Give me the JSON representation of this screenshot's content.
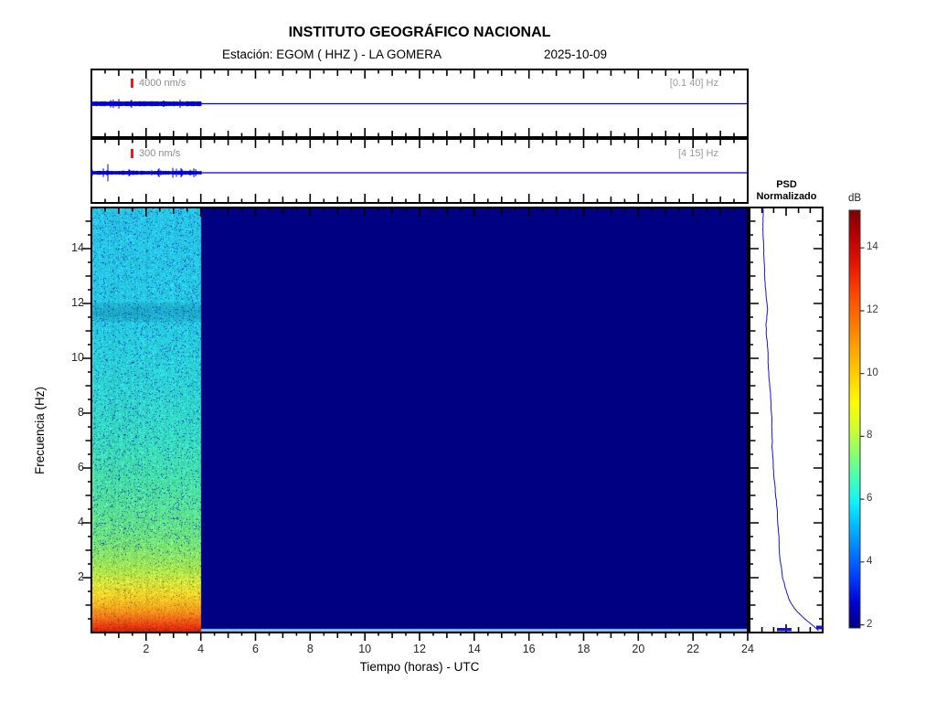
{
  "header": {
    "title": "INSTITUTO GEOGRÁFICO NACIONAL",
    "station": "Estación:  EGOM ( HHZ ) - LA GOMERA",
    "date": "2025-10-09"
  },
  "strips": [
    {
      "scale_label": "4000 nm/s",
      "band_label": "[0.1 40] Hz"
    },
    {
      "scale_label": "300 nm/s",
      "band_label": "[4 15] Hz"
    }
  ],
  "axes": {
    "x_label": "Tiempo (horas) - UTC",
    "y_label": "Frecuencia (Hz)"
  },
  "psd": {
    "title_line1": "PSD",
    "title_line2": "Normalizado"
  },
  "colorbar": {
    "label": "dB",
    "ticks": [
      14,
      12,
      10,
      8,
      6,
      4,
      2
    ],
    "value_range": [
      1.9,
      15.2
    ]
  },
  "chart_data": {
    "type": "heatmap",
    "title": "INSTITUTO GEOGRÁFICO NACIONAL",
    "subtitle": "Estación: EGOM ( HHZ ) - LA GOMERA  2025-10-09",
    "xlabel": "Tiempo (horas) - UTC",
    "ylabel": "Frecuencia (Hz)",
    "xlim": [
      0,
      24
    ],
    "ylim": [
      0,
      15.5
    ],
    "x_major_ticks": [
      2,
      4,
      6,
      8,
      10,
      12,
      14,
      16,
      18,
      20,
      22,
      24
    ],
    "y_major_ticks": [
      2,
      4,
      6,
      8,
      10,
      12,
      14
    ],
    "data_time_range_hours": [
      0,
      4
    ],
    "no_data_color": "#000082",
    "colormap": "jet",
    "colorbar_db_range": [
      2,
      15
    ],
    "waveforms": [
      {
        "scale_label": "4000 nm/s",
        "band_hz": [
          0.1,
          40
        ],
        "active_hours": [
          0,
          4
        ]
      },
      {
        "scale_label": "300 nm/s",
        "band_hz": [
          4,
          15
        ],
        "active_hours": [
          0,
          4
        ]
      }
    ],
    "freq_color_stops": [
      [
        15.5,
        40,
        198,
        232
      ],
      [
        12.1,
        38,
        202,
        228
      ],
      [
        11.7,
        30,
        182,
        216
      ],
      [
        11.3,
        38,
        203,
        226
      ],
      [
        9.0,
        46,
        212,
        212
      ],
      [
        7.0,
        56,
        220,
        192
      ],
      [
        5.5,
        72,
        224,
        166
      ],
      [
        4.5,
        88,
        226,
        150
      ],
      [
        3.5,
        108,
        226,
        126
      ],
      [
        2.8,
        138,
        228,
        100
      ],
      [
        2.2,
        178,
        230,
        76
      ],
      [
        1.8,
        216,
        226,
        58
      ],
      [
        1.4,
        242,
        212,
        44
      ],
      [
        1.1,
        248,
        186,
        34
      ],
      [
        0.8,
        248,
        150,
        28
      ],
      [
        0.55,
        243,
        112,
        24
      ],
      [
        0.35,
        236,
        76,
        20
      ],
      [
        0.18,
        226,
        48,
        14
      ],
      [
        0.0,
        206,
        28,
        10
      ]
    ],
    "psd_curve_points": [
      [
        15.5,
        0.185
      ],
      [
        15.0,
        0.19
      ],
      [
        14.5,
        0.195
      ],
      [
        14.0,
        0.2
      ],
      [
        13.5,
        0.205
      ],
      [
        13.0,
        0.21
      ],
      [
        12.6,
        0.215
      ],
      [
        12.3,
        0.225
      ],
      [
        12.0,
        0.24
      ],
      [
        11.8,
        0.25
      ],
      [
        11.5,
        0.235
      ],
      [
        11.2,
        0.225
      ],
      [
        11.0,
        0.23
      ],
      [
        10.5,
        0.24
      ],
      [
        10.0,
        0.25
      ],
      [
        9.5,
        0.26
      ],
      [
        9.0,
        0.27
      ],
      [
        8.5,
        0.28
      ],
      [
        8.0,
        0.29
      ],
      [
        7.5,
        0.3
      ],
      [
        7.0,
        0.31
      ],
      [
        6.5,
        0.32
      ],
      [
        6.0,
        0.33
      ],
      [
        5.5,
        0.345
      ],
      [
        5.0,
        0.355
      ],
      [
        4.5,
        0.37
      ],
      [
        4.0,
        0.385
      ],
      [
        3.6,
        0.4
      ],
      [
        3.2,
        0.41
      ],
      [
        2.9,
        0.42
      ],
      [
        2.6,
        0.43
      ],
      [
        2.3,
        0.445
      ],
      [
        2.0,
        0.46
      ],
      [
        1.8,
        0.48
      ],
      [
        1.6,
        0.5
      ],
      [
        1.4,
        0.525
      ],
      [
        1.2,
        0.55
      ],
      [
        1.05,
        0.575
      ],
      [
        0.9,
        0.61
      ],
      [
        0.75,
        0.655
      ],
      [
        0.6,
        0.71
      ],
      [
        0.45,
        0.775
      ],
      [
        0.32,
        0.84
      ],
      [
        0.22,
        0.885
      ],
      [
        0.14,
        0.92
      ],
      [
        0.07,
        0.945
      ],
      [
        0.02,
        0.955
      ]
    ]
  }
}
